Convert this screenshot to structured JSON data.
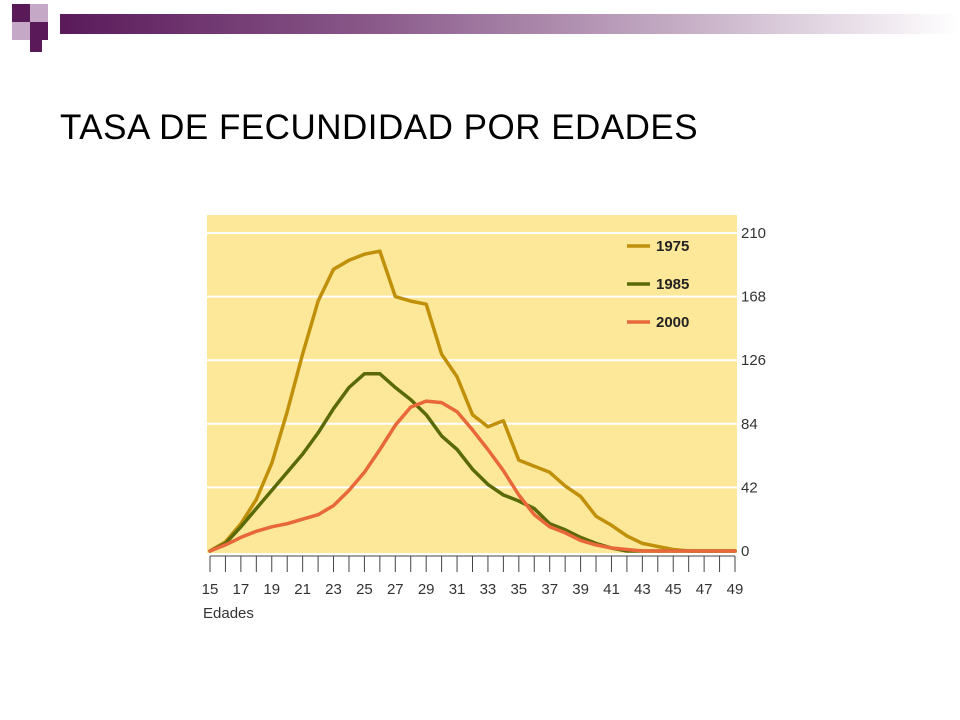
{
  "slide": {
    "title": "TASA DE FECUNDIDAD POR EDADES",
    "accent_dark": "#5a1a5a",
    "accent_light": "#b89ab8"
  },
  "chart_data": {
    "type": "line",
    "title": "",
    "xlabel": "Edades",
    "ylabel": "",
    "x": [
      15,
      16,
      17,
      18,
      19,
      20,
      21,
      22,
      23,
      24,
      25,
      26,
      27,
      28,
      29,
      30,
      31,
      32,
      33,
      34,
      35,
      36,
      37,
      38,
      39,
      40,
      41,
      42,
      43,
      44,
      45,
      46,
      47,
      48,
      49
    ],
    "xticks": [
      "15",
      "17",
      "19",
      "21",
      "23",
      "25",
      "27",
      "29",
      "31",
      "33",
      "35",
      "37",
      "39",
      "41",
      "43",
      "45",
      "47",
      "49"
    ],
    "yticks": [
      "0",
      "42",
      "84",
      "126",
      "168",
      "210"
    ],
    "ylim": [
      0,
      210
    ],
    "xlim": [
      15,
      49
    ],
    "grid": true,
    "background": "#fde89a",
    "legend_position": "top-right",
    "series": [
      {
        "name": "1975",
        "color": "#c0900a",
        "values": [
          0,
          6,
          18,
          34,
          58,
          92,
          130,
          165,
          186,
          192,
          196,
          198,
          168,
          165,
          163,
          130,
          115,
          90,
          82,
          86,
          60,
          56,
          52,
          43,
          36,
          23,
          17,
          10,
          5,
          3,
          1,
          0,
          0,
          0,
          0
        ]
      },
      {
        "name": "1985",
        "color": "#5a6a08",
        "values": [
          0,
          5,
          16,
          28,
          40,
          52,
          64,
          78,
          94,
          108,
          117,
          117,
          108,
          100,
          90,
          76,
          67,
          54,
          44,
          37,
          33,
          28,
          18,
          14,
          9,
          5,
          2,
          0,
          0,
          0,
          0,
          0,
          0,
          0,
          0
        ]
      },
      {
        "name": "2000",
        "color": "#e8683a",
        "values": [
          0,
          4,
          9,
          13,
          16,
          18,
          21,
          24,
          30,
          40,
          52,
          67,
          83,
          95,
          99,
          98,
          92,
          80,
          67,
          53,
          37,
          24,
          16,
          12,
          7,
          4,
          2,
          1,
          0,
          0,
          0,
          0,
          0,
          0,
          0
        ]
      }
    ],
    "x_caption": "Edades"
  }
}
